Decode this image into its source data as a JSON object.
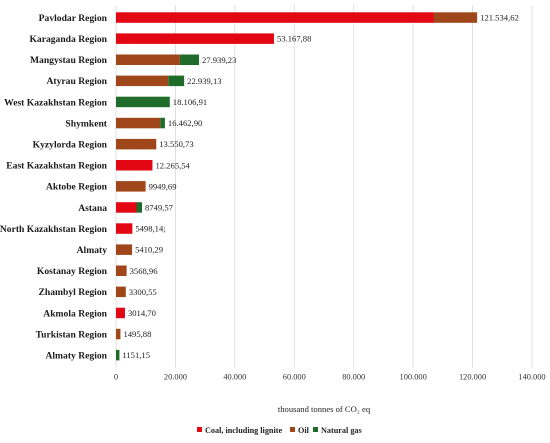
{
  "chart_data": {
    "type": "bar",
    "orientation": "horizontal",
    "stacked": true,
    "categories": [
      "Pavlodar Region",
      "Karaganda Region",
      "Mangystau Region",
      "Atyrau Region",
      "West Kazakhstan Region",
      "Shymkent",
      "Kyzylorda Region",
      "East Kazakhstan Region",
      "Aktobe Region",
      "Astana",
      "North Kazakhstan Region",
      "Almaty",
      "Kostanay Region",
      "Zhambyl Region",
      "Akmola Region",
      "Turkistan Region",
      "Almaty Region"
    ],
    "totals": [
      "121.534,62",
      "53.167,88",
      "27.939,23",
      "22.939,13",
      "18.106,91",
      "16.462,90",
      "13.550,73",
      "12.265,54",
      "9949,69",
      "8749,57",
      "5498,14;",
      "5410,29",
      "3568,96",
      "3300,55",
      "3014,70",
      "1495,88",
      "1151,15"
    ],
    "series": [
      {
        "name": "Coal, including lignite",
        "color": "#e30613",
        "values": [
          107000,
          53167.88,
          0,
          0,
          0,
          0,
          0,
          12265.54,
          0,
          6900,
          5498.14,
          0,
          0,
          0,
          3014.7,
          0,
          0
        ]
      },
      {
        "name": "Oil",
        "color": "#a0461b",
        "values": [
          14534.62,
          0,
          21500,
          17600,
          0,
          14900,
          13550.73,
          0,
          9949.69,
          0,
          0,
          5410.29,
          3568.96,
          3300.55,
          0,
          1495.88,
          0
        ]
      },
      {
        "name": "Natural gas",
        "color": "#1e6b2a",
        "values": [
          0,
          0,
          6439.23,
          5339.13,
          18106.91,
          1562.9,
          0,
          0,
          0,
          1849.57,
          0,
          0,
          0,
          0,
          0,
          0,
          1151.15
        ]
      }
    ],
    "xlim": [
      0,
      140000
    ],
    "xticks": [
      0,
      20000,
      40000,
      60000,
      80000,
      100000,
      120000,
      140000
    ],
    "xtick_labels": [
      "0",
      "20.000",
      "40.000",
      "60.000",
      "80.000",
      "100.000",
      "120.000",
      "140.000"
    ],
    "xlabel": "thousand tonnes of CO₂ eq",
    "grid": "vertical",
    "legend_position": "bottom"
  }
}
